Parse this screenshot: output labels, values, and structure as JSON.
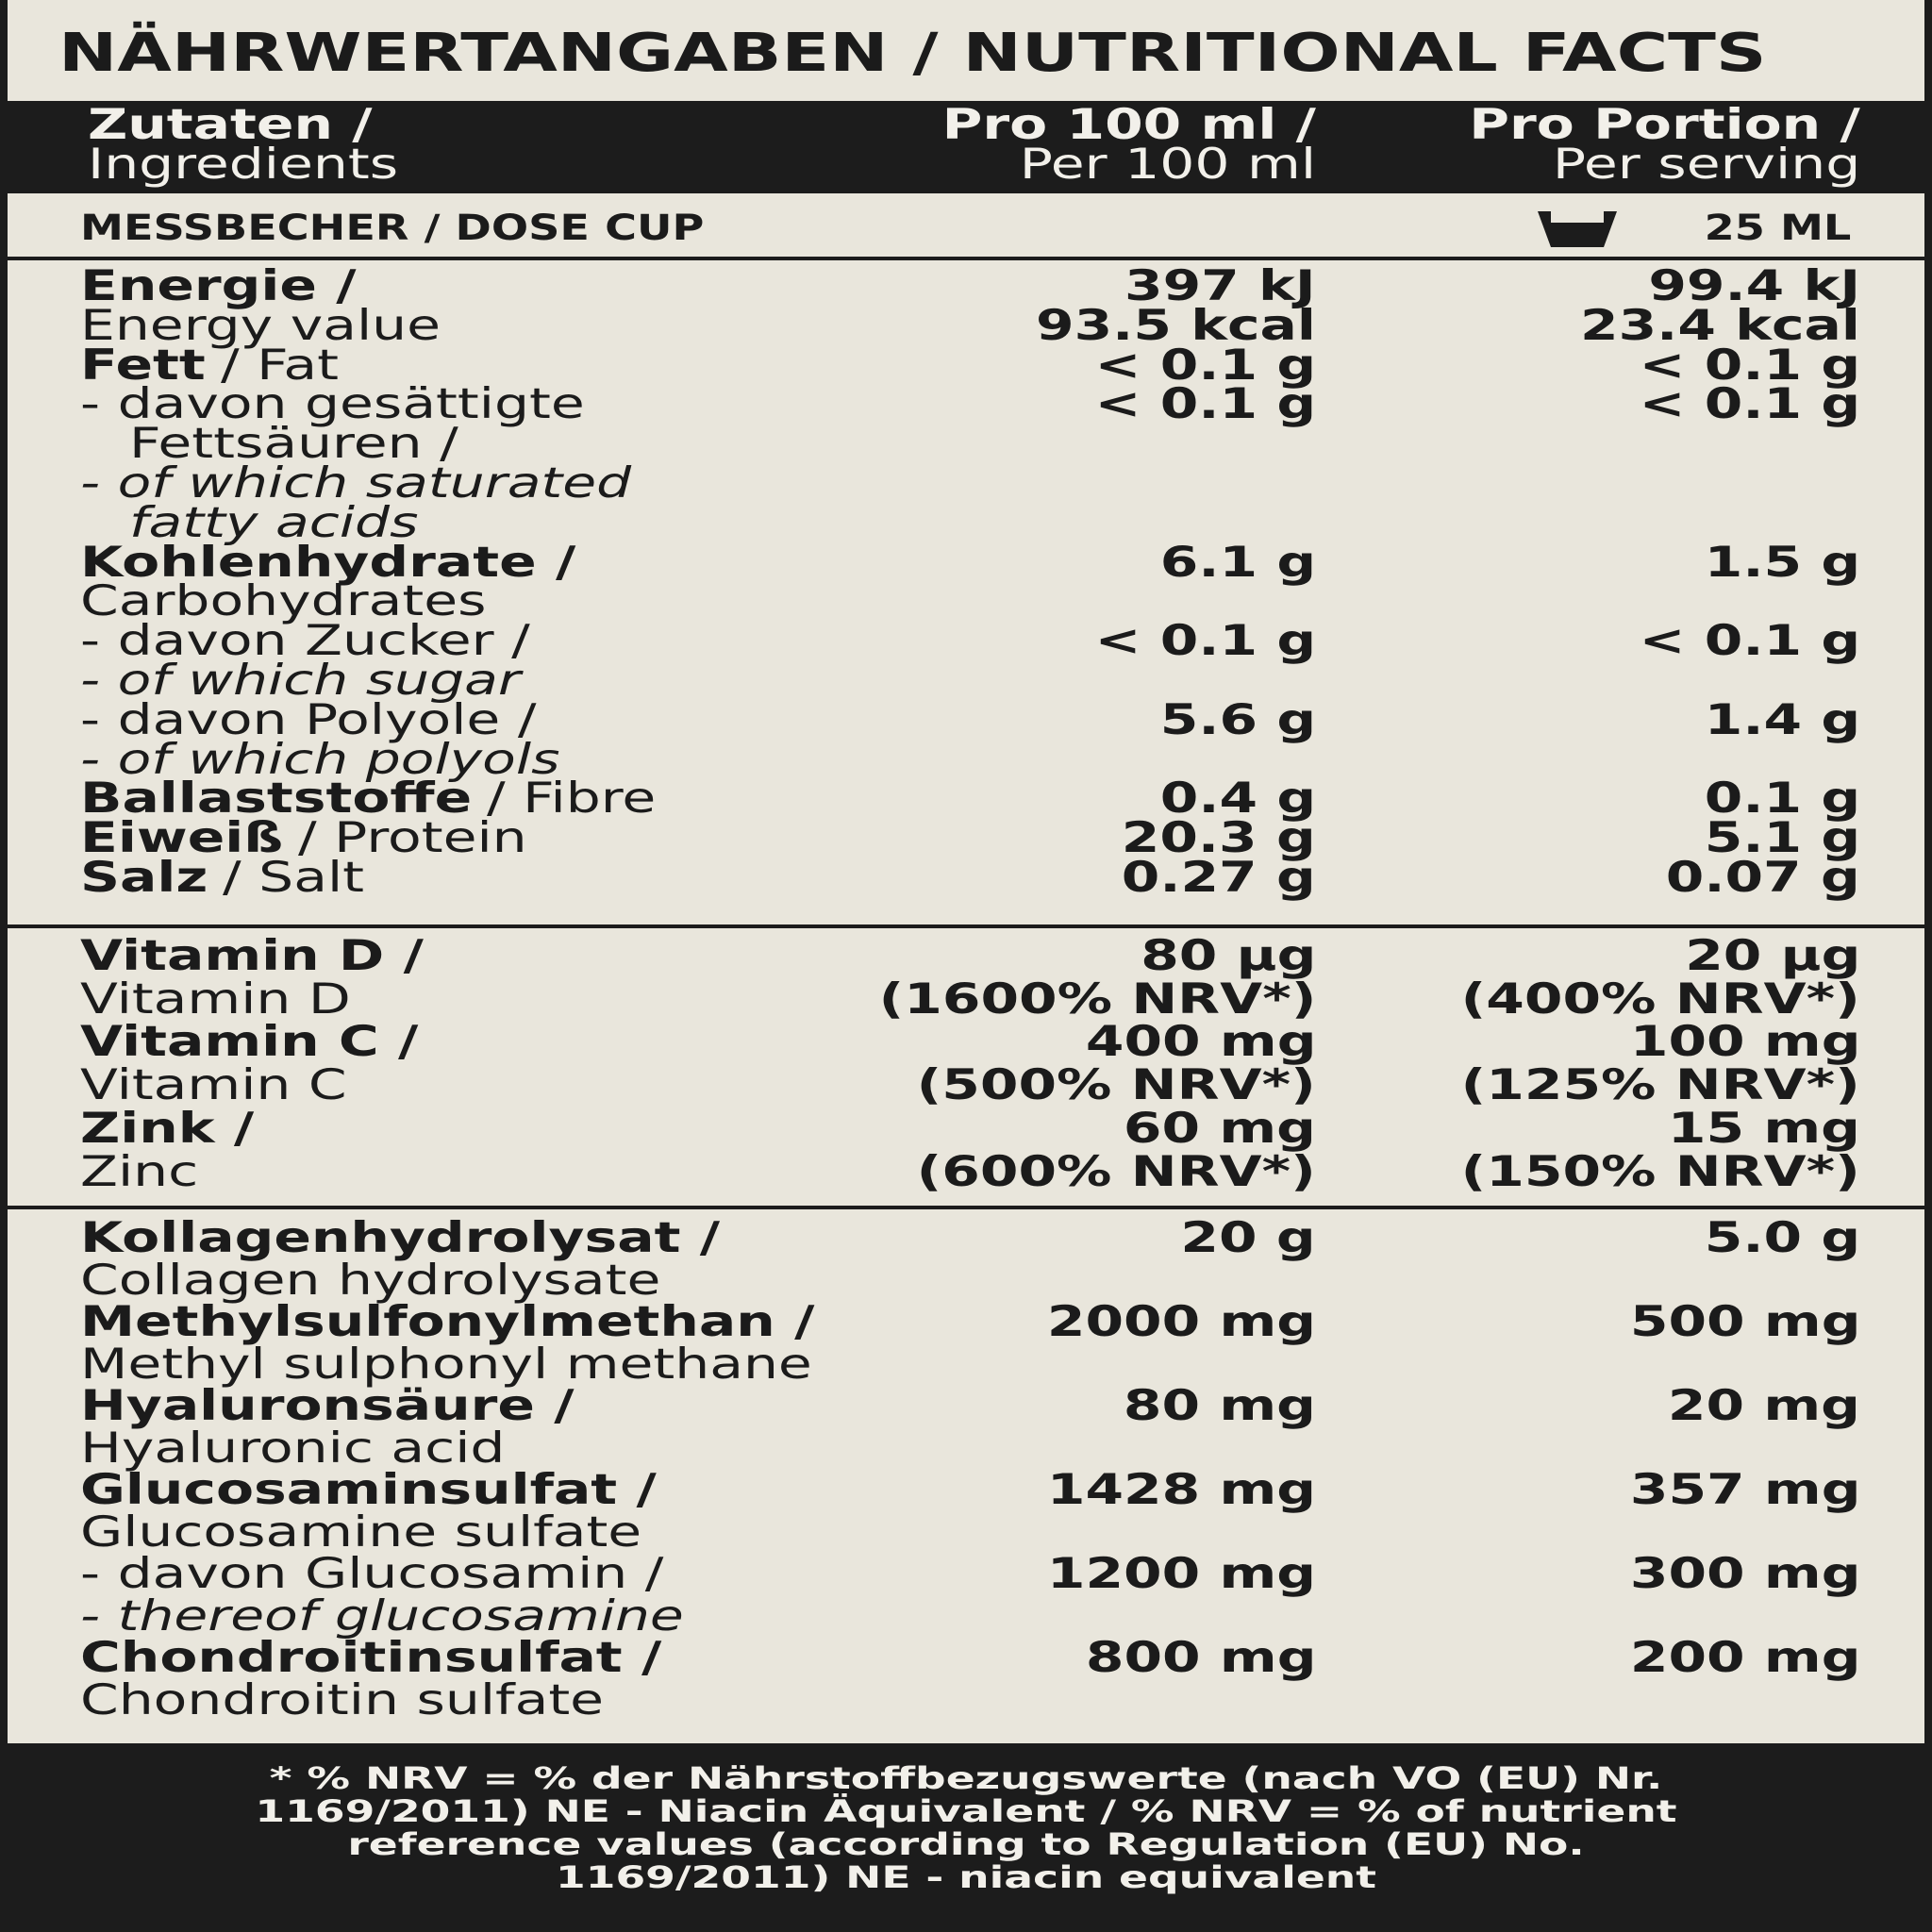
{
  "title": "NÄHRWERTANGABEN / NUTRITIONAL FACTS",
  "header": {
    "ingredients": [
      "Zutaten /",
      "Ingredients"
    ],
    "per_100ml": [
      "Pro 100 ml /",
      "Per 100 ml"
    ],
    "per_serving": [
      "Pro Portion /",
      "Per serving"
    ]
  },
  "dose_cup": {
    "label": "MESSBECHER / DOSE CUP",
    "amount": "25 ML"
  },
  "sections": [
    {
      "rows": [
        {
          "lines": [
            [
              {
                "text": "Energie /",
                "style": "bold"
              }
            ],
            [
              {
                "text": "Energy value",
                "style": "regular"
              }
            ]
          ],
          "per_100ml": [
            "397 kJ",
            "93.5 kcal"
          ],
          "per_serving": [
            "99.4 kJ",
            "23.4 kcal"
          ]
        },
        {
          "lines": [
            [
              {
                "text": "Fett",
                "style": "bold"
              },
              {
                "text": "/ Fat",
                "style": "regular"
              }
            ]
          ],
          "per_100ml": [
            "< 0.1 g"
          ],
          "per_serving": [
            "< 0.1 g"
          ]
        },
        {
          "lines": [
            [
              {
                "text": "- davon gesättigte",
                "style": "regular"
              }
            ],
            [
              {
                "text": "Fettsäuren /",
                "style": "regular"
              }
            ],
            [
              {
                "text": "- of which saturated",
                "style": "italic"
              }
            ],
            [
              {
                "text": "fatty acids",
                "style": "italic"
              }
            ]
          ],
          "per_100ml": [
            "< 0.1 g"
          ],
          "per_serving": [
            "< 0.1 g"
          ]
        },
        {
          "lines": [
            [
              {
                "text": "Kohlenhydrate /",
                "style": "bold"
              }
            ],
            [
              {
                "text": "Carbohydrates",
                "style": "regular"
              }
            ]
          ],
          "per_100ml": [
            "6.1 g"
          ],
          "per_serving": [
            "1.5 g"
          ]
        },
        {
          "lines": [
            [
              {
                "text": "- davon Zucker /",
                "style": "regular"
              }
            ],
            [
              {
                "text": "- of which sugar",
                "style": "italic"
              }
            ]
          ],
          "per_100ml": [
            "< 0.1 g"
          ],
          "per_serving": [
            "< 0.1 g"
          ]
        },
        {
          "lines": [
            [
              {
                "text": "- davon Polyole /",
                "style": "regular"
              }
            ],
            [
              {
                "text": "- of which polyols",
                "style": "italic"
              }
            ]
          ],
          "per_100ml": [
            "5.6 g"
          ],
          "per_serving": [
            "1.4 g"
          ]
        },
        {
          "lines": [
            [
              {
                "text": "Ballaststoffe",
                "style": "bold"
              },
              {
                "text": "/ Fibre",
                "style": "regular"
              }
            ]
          ],
          "per_100ml": [
            "0.4 g"
          ],
          "per_serving": [
            "0.1 g"
          ]
        },
        {
          "lines": [
            [
              {
                "text": "Eiweiß",
                "style": "bold"
              },
              {
                "text": "/ Protein",
                "style": "regular"
              }
            ]
          ],
          "per_100ml": [
            "20.3 g"
          ],
          "per_serving": [
            "5.1 g"
          ]
        },
        {
          "lines": [
            [
              {
                "text": "Salz",
                "style": "bold"
              },
              {
                "text": "/ Salt",
                "style": "regular"
              }
            ]
          ],
          "per_100ml": [
            "0.27 g"
          ],
          "per_serving": [
            "0.07 g"
          ]
        }
      ]
    },
    {
      "rows": [
        {
          "lines": [
            [
              {
                "text": "Vitamin D /",
                "style": "bold"
              }
            ],
            [
              {
                "text": "Vitamin D",
                "style": "regular"
              }
            ]
          ],
          "per_100ml": [
            "80 µg",
            "(1600% NRV*)"
          ],
          "per_serving": [
            "20 µg",
            "(400% NRV*)"
          ]
        },
        {
          "lines": [
            [
              {
                "text": "Vitamin C /",
                "style": "bold"
              }
            ],
            [
              {
                "text": "Vitamin C",
                "style": "regular"
              }
            ]
          ],
          "per_100ml": [
            "400 mg",
            "(500% NRV*)"
          ],
          "per_serving": [
            "100 mg",
            "(125% NRV*)"
          ]
        },
        {
          "lines": [
            [
              {
                "text": "Zink /",
                "style": "bold"
              }
            ],
            [
              {
                "text": "Zinc",
                "style": "regular"
              }
            ]
          ],
          "per_100ml": [
            "60 mg",
            "(600% NRV*)"
          ],
          "per_serving": [
            "15 mg",
            "(150% NRV*)"
          ]
        }
      ]
    },
    {
      "rows": [
        {
          "lines": [
            [
              {
                "text": "Kollagenhydrolysat /",
                "style": "bold"
              }
            ],
            [
              {
                "text": "Collagen hydrolysate",
                "style": "regular"
              }
            ]
          ],
          "per_100ml": [
            "20 g"
          ],
          "per_serving": [
            "5.0 g"
          ]
        },
        {
          "lines": [
            [
              {
                "text": "Methylsulfonylmethan /",
                "style": "bold"
              }
            ],
            [
              {
                "text": "Methyl sulphonyl methane",
                "style": "regular"
              }
            ]
          ],
          "per_100ml": [
            "2000 mg"
          ],
          "per_serving": [
            "500 mg"
          ]
        },
        {
          "lines": [
            [
              {
                "text": "Hyaluronsäure /",
                "style": "bold"
              }
            ],
            [
              {
                "text": "Hyaluronic acid",
                "style": "regular"
              }
            ]
          ],
          "per_100ml": [
            "80 mg"
          ],
          "per_serving": [
            "20 mg"
          ]
        },
        {
          "lines": [
            [
              {
                "text": "Glucosaminsulfat /",
                "style": "bold"
              }
            ],
            [
              {
                "text": "Glucosamine sulfate",
                "style": "regular"
              }
            ]
          ],
          "per_100ml": [
            "1428 mg"
          ],
          "per_serving": [
            "357 mg"
          ]
        },
        {
          "lines": [
            [
              {
                "text": "- davon Glucosamin /",
                "style": "regular"
              }
            ],
            [
              {
                "text": "- thereof glucosamine",
                "style": "italic"
              }
            ]
          ],
          "per_100ml": [
            "1200 mg"
          ],
          "per_serving": [
            "300 mg"
          ]
        },
        {
          "lines": [
            [
              {
                "text": "Chondroitinsulfat /",
                "style": "bold"
              }
            ],
            [
              {
                "text": "Chondroitin sulfate",
                "style": "regular"
              }
            ]
          ],
          "per_100ml": [
            "800 mg"
          ],
          "per_serving": [
            "200 mg"
          ]
        }
      ]
    }
  ],
  "footnote": [
    "* % NRV = % der Nährstoffbezugswerte (nach VO (EU) Nr.",
    "1169/2011) NE - Niacin Äquivalent / % NRV = % of nutrient",
    "reference values (according to Regulation (EU) No.",
    "1169/2011)  NE - niacin equivalent"
  ]
}
